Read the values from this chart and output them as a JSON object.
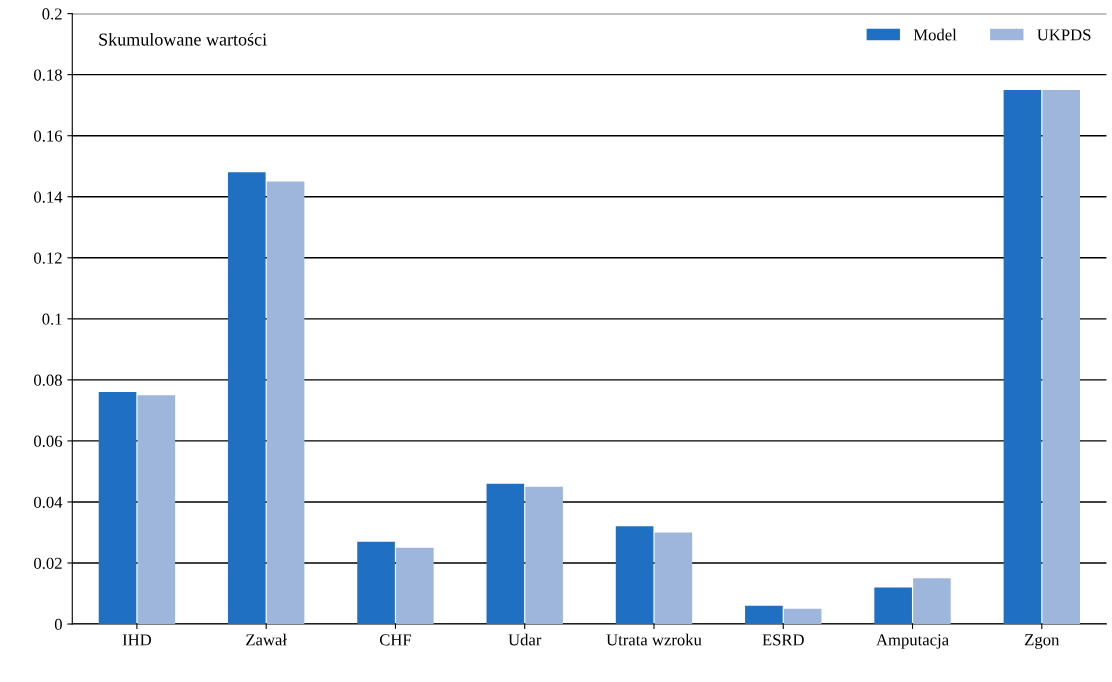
{
  "chart_data": {
    "type": "bar",
    "annotations": [
      "Skumulowane wartości"
    ],
    "categories": [
      "IHD",
      "Zawał",
      "CHF",
      "Udar",
      "Utrata wzroku",
      "ESRD",
      "Amputacja",
      "Zgon"
    ],
    "series": [
      {
        "name": "Model",
        "color": "#1f6fc2",
        "values": [
          0.076,
          0.148,
          0.027,
          0.046,
          0.032,
          0.006,
          0.012,
          0.175
        ]
      },
      {
        "name": "UKPDS",
        "color": "#9fb6dc",
        "values": [
          0.075,
          0.145,
          0.025,
          0.045,
          0.03,
          0.005,
          0.015,
          0.175
        ]
      }
    ],
    "ylim": [
      0,
      0.2
    ],
    "yticks": [
      0,
      0.02,
      0.04,
      0.06,
      0.08,
      0.1,
      0.12,
      0.14,
      0.16,
      0.18,
      0.2
    ],
    "grid": "y",
    "legend": "top right"
  }
}
